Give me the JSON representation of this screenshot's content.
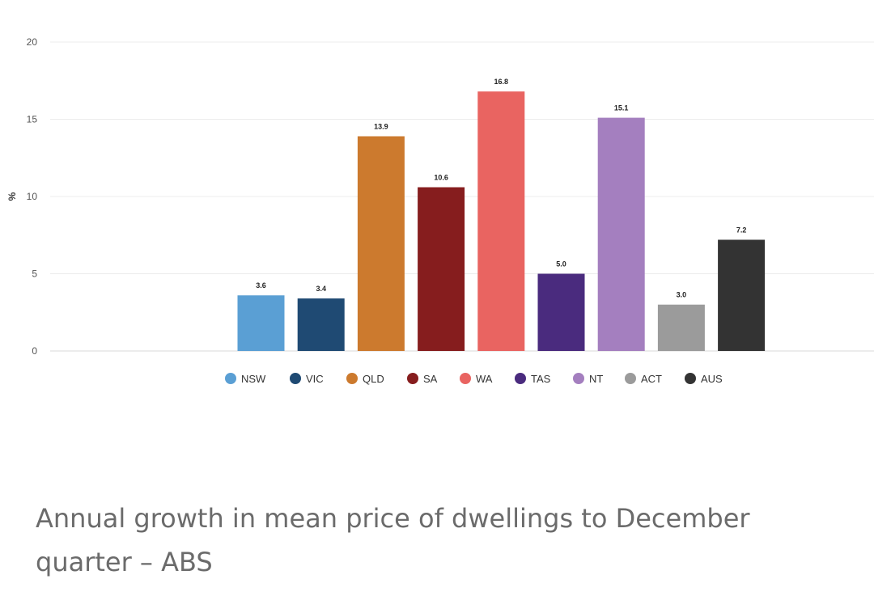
{
  "chart_data": {
    "type": "bar",
    "title": "",
    "xlabel": "",
    "ylabel": "%",
    "ylim": [
      0,
      20
    ],
    "yticks": [
      0,
      5,
      10,
      15,
      20
    ],
    "grid": true,
    "legend_position": "bottom",
    "categories": [
      "NSW",
      "VIC",
      "QLD",
      "SA",
      "WA",
      "TAS",
      "NT",
      "ACT",
      "AUS"
    ],
    "values": [
      3.6,
      3.4,
      13.9,
      10.6,
      16.8,
      5.0,
      15.1,
      3.0,
      7.2
    ],
    "value_labels": [
      "3.6",
      "3.4",
      "13.9",
      "10.6",
      "16.8",
      "5.0",
      "15.1",
      "3.0",
      "7.2"
    ],
    "colors": [
      "#5a9fd4",
      "#1f4a73",
      "#cc7a2e",
      "#861d1e",
      "#e96461",
      "#4a2b7e",
      "#a47fbf",
      "#9b9b9b",
      "#333333"
    ]
  },
  "caption": "Annual growth in mean price of dwellings to December quarter – ABS"
}
